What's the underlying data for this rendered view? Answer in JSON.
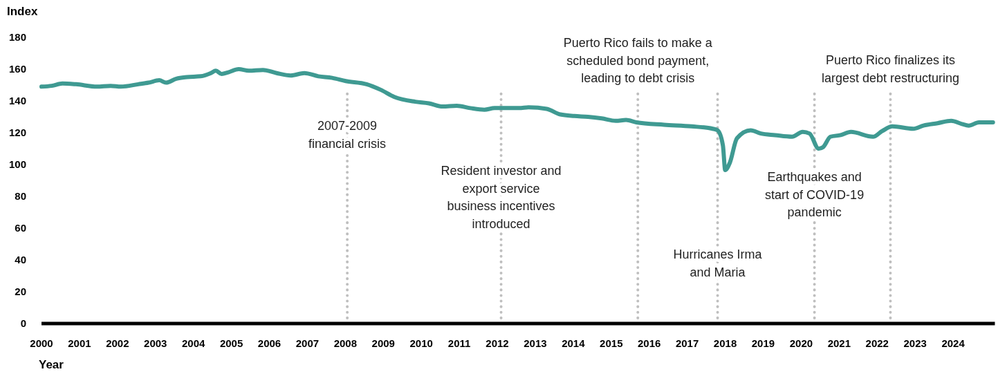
{
  "chart_data": {
    "type": "line",
    "xlabel": "Year",
    "ylabel": "Index",
    "x": [
      2000.0,
      2000.27,
      2000.55,
      2000.91,
      2001.46,
      2001.82,
      2002.09,
      2002.55,
      2002.82,
      2003.1,
      2003.28,
      2003.55,
      2003.83,
      2004.19,
      2004.46,
      2004.59,
      2004.74,
      2004.92,
      2005.19,
      2005.46,
      2005.83,
      2006.19,
      2006.56,
      2006.92,
      2007.29,
      2007.65,
      2008.01,
      2008.56,
      2008.93,
      2009.29,
      2009.84,
      2010.2,
      2010.56,
      2010.93,
      2011.29,
      2011.66,
      2011.93,
      2012.57,
      2012.84,
      2013.3,
      2013.66,
      2014.03,
      2014.39,
      2014.75,
      2015.12,
      2015.39,
      2015.66,
      2016.39,
      2017.12,
      2017.67,
      2017.8,
      2017.94,
      2018.0,
      2018.12,
      2018.31,
      2018.67,
      2018.94,
      2019.31,
      2019.76,
      2020.04,
      2020.22,
      2020.46,
      2020.58,
      2020.77,
      2021.04,
      2021.31,
      2021.89,
      2022.13,
      2022.4,
      2022.95,
      2023.22,
      2023.59,
      2023.95,
      2024.23,
      2024.41,
      2024.68,
      2025.05
    ],
    "series": [
      {
        "color": "#3f9a92",
        "values": [
          149,
          149.5,
          151,
          150.5,
          149,
          149.5,
          149,
          150.5,
          151.5,
          153,
          151.5,
          154,
          155,
          155.5,
          157.5,
          159,
          157,
          158,
          160,
          159,
          159.5,
          157.5,
          156,
          157.5,
          155.5,
          154.5,
          152.5,
          150.5,
          147,
          142.5,
          139.5,
          138.5,
          136.5,
          137,
          135.5,
          134.5,
          135.5,
          135.5,
          136,
          135,
          131.5,
          130.5,
          130,
          129,
          127.5,
          128,
          126.5,
          125,
          124,
          122.5,
          121.5,
          112,
          96.5,
          101,
          116.5,
          121.5,
          119.5,
          118.5,
          117.5,
          120.5,
          119.5,
          110,
          111,
          117.5,
          118.5,
          120.5,
          117.5,
          121,
          124,
          122.5,
          124.5,
          126,
          127.5,
          125.5,
          124.5,
          126.5,
          126.5
        ]
      }
    ],
    "xlim": [
      2000,
      2025.1
    ],
    "xticks": [
      2000,
      2001,
      2002,
      2003,
      2004,
      2005,
      2006,
      2007,
      2008,
      2009,
      2010,
      2011,
      2012,
      2013,
      2014,
      2015,
      2016,
      2017,
      2018,
      2019,
      2020,
      2021,
      2022,
      2023,
      2024
    ],
    "ylim": [
      0,
      180
    ],
    "yticks": [
      0,
      20,
      40,
      60,
      80,
      100,
      120,
      140,
      160,
      180
    ],
    "grid": false,
    "line_style": "solid",
    "marker": "none",
    "ref_lines": [
      {
        "axis": "x",
        "value": 2008.05,
        "label": "2007-2009\nfinancial crisis",
        "color": "#bfbfbf",
        "line_style": "dotted"
      },
      {
        "axis": "x",
        "value": 2012.1,
        "label": "Resident investor and\nexport service\nbusiness incentives\nintroduced",
        "color": "#bfbfbf",
        "line_style": "dotted"
      },
      {
        "axis": "x",
        "value": 2015.7,
        "label": "Puerto Rico fails to make a\nscheduled bond payment,\nleading to debt crisis",
        "color": "#bfbfbf",
        "line_style": "dotted"
      },
      {
        "axis": "x",
        "value": 2017.8,
        "label": "Hurricanes Irma\nand Maria",
        "color": "#bfbfbf",
        "line_style": "dotted"
      },
      {
        "axis": "x",
        "value": 2020.35,
        "label": "Earthquakes and\nstart of COVID-19\npandemic",
        "color": "#bfbfbf",
        "line_style": "dotted"
      },
      {
        "axis": "x",
        "value": 2022.35,
        "label": "Puerto Rico finalizes its\nlargest debt restructuring",
        "color": "#bfbfbf",
        "line_style": "dotted"
      }
    ]
  }
}
